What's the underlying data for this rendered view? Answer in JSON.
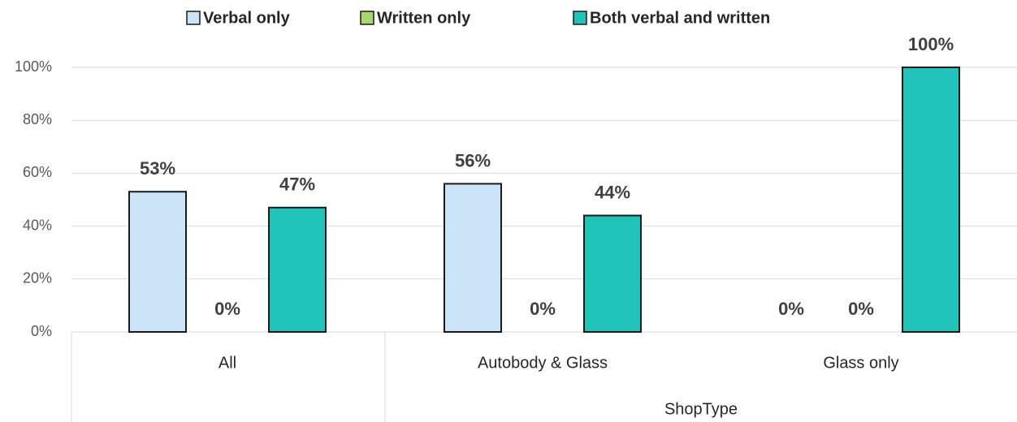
{
  "chart_data": {
    "type": "bar",
    "x_label": "ShopType",
    "categories": [
      "All",
      "Autobody & Glass",
      "Glass only"
    ],
    "series": [
      {
        "name": "Verbal only",
        "color": "#cce4f7",
        "values": [
          53,
          56,
          0
        ],
        "value_labels": [
          "53%",
          "56%",
          "0%"
        ]
      },
      {
        "name": "Written only",
        "color": "#a6d86e",
        "values": [
          0,
          0,
          0
        ],
        "value_labels": [
          "0%",
          "0%",
          "0%"
        ]
      },
      {
        "name": "Both verbal and written",
        "color": "#20c4b8",
        "values": [
          47,
          44,
          100
        ],
        "value_labels": [
          "47%",
          "44%",
          "100%"
        ]
      }
    ],
    "ylim": [
      0,
      100
    ],
    "yticks": [
      {
        "value": 0,
        "label": "0%"
      },
      {
        "value": 20,
        "label": "20%"
      },
      {
        "value": 40,
        "label": "40%"
      },
      {
        "value": 60,
        "label": "60%"
      },
      {
        "value": 80,
        "label": "80%"
      },
      {
        "value": 100,
        "label": "100%"
      }
    ],
    "grid": true,
    "legend": "top"
  }
}
